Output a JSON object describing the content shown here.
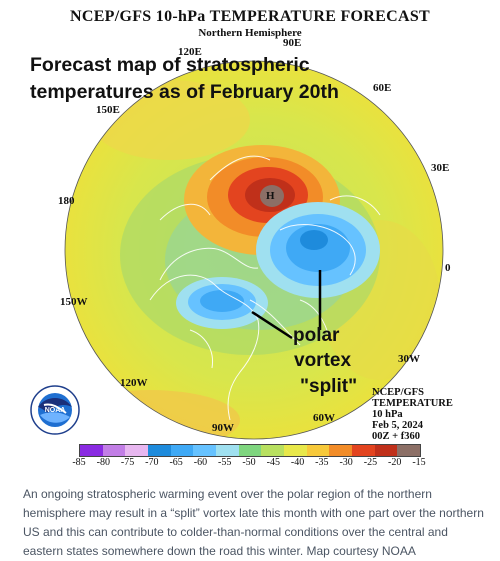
{
  "map": {
    "title": "NCEP/GFS 10-hPa TEMPERATURE FORECAST",
    "subtitle": "Northern Hemisphere",
    "overlay_line1": "Forecast map of stratospheric",
    "overlay_line2": "temperatures as of February 20th",
    "longitudes": {
      "lon_90e": "90E",
      "lon_120e": "120E",
      "lon_60e": "60E",
      "lon_150e": "150E",
      "lon_30e": "30E",
      "lon_180": "180",
      "lon_0": "0",
      "lon_150w": "150W",
      "lon_30w": "30W",
      "lon_120w": "120W",
      "lon_60w": "60W",
      "lon_90w": "90W"
    },
    "annotation": {
      "line1": "polar",
      "line2": "vortex",
      "line3": "\"split\""
    },
    "info": {
      "line1": "NCEP/GFS",
      "line2": "TEMPERATURE",
      "line3": "10 hPa",
      "line4": "Feb 5, 2024",
      "line5": "00Z + f360"
    },
    "logo_text": "NOAA",
    "legend": {
      "ticks": [
        "-85",
        "-80",
        "-75",
        "-70",
        "-65",
        "-60",
        "-55",
        "-50",
        "-45",
        "-40",
        "-35",
        "-30",
        "-25",
        "-20",
        "-15"
      ],
      "colors": [
        "#8a2be2",
        "#c27ee6",
        "#e8b7f0",
        "#1e8bdc",
        "#3fa9f5",
        "#66c2ff",
        "#9fe0f0",
        "#7fd67f",
        "#b8e060",
        "#e8e84a",
        "#f7c93a",
        "#f28c28",
        "#e3441f",
        "#c0301a",
        "#8c6f66"
      ]
    }
  },
  "caption": {
    "text": "An ongoing stratospheric warming event over the polar region of the northern hemisphere may result in a “split” vortex late this month with one part over the northern US and this can contribute to colder-than-normal conditions over the central and eastern states somewhere down the road this winter. Map courtesy NOAA"
  }
}
